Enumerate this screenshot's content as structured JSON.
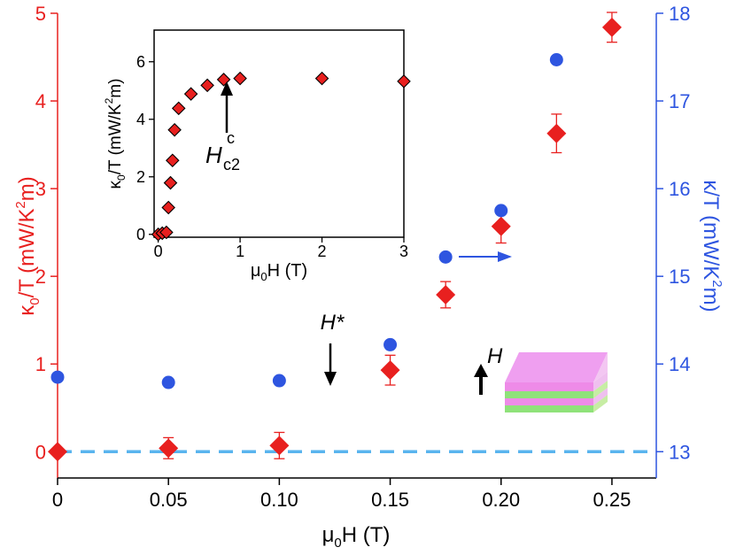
{
  "chart_data": [
    {
      "type": "scatter",
      "xlabel_prefix": "μ",
      "xlabel_sub": "0",
      "xlabel_suffix": "H (T)",
      "xlim": [
        0,
        0.27
      ],
      "x_ticks": [
        "0",
        "0.05",
        "0.10",
        "0.15",
        "0.20",
        "0.25"
      ],
      "x_tick_values": [
        0,
        0.05,
        0.1,
        0.15,
        0.2,
        0.25
      ],
      "left_axis": {
        "label": "κ0/T (mW/K²m)",
        "label_main": "κ",
        "label_sub": "0",
        "label_mid": "/T (mW/K",
        "label_sup": "2",
        "label_end": "m)",
        "color": "#e8201f",
        "ylim": [
          -0.3,
          5
        ],
        "ticks": [
          "0",
          "1",
          "2",
          "3",
          "4",
          "5"
        ],
        "tick_values": [
          0,
          1,
          2,
          3,
          4,
          5
        ]
      },
      "right_axis": {
        "label": "κ/T (mW/K²m)",
        "label_main": "κ/T (mW/K",
        "label_sup": "2",
        "label_end": "m)",
        "color": "#2e55e0",
        "ylim": [
          12.7,
          18
        ],
        "ticks": [
          "13",
          "14",
          "15",
          "16",
          "17",
          "18"
        ],
        "tick_values": [
          13,
          14,
          15,
          16,
          17,
          18
        ]
      },
      "series": [
        {
          "name": "κ0/T",
          "axis": "left",
          "marker": "diamond",
          "color": "#e8201f",
          "x": [
            0,
            0.05,
            0.1,
            0.15,
            0.175,
            0.2,
            0.225,
            0.25
          ],
          "y": [
            0.0,
            0.04,
            0.07,
            0.93,
            1.79,
            2.57,
            3.63,
            4.84
          ],
          "err": [
            0,
            0.12,
            0.15,
            0.17,
            0.15,
            0.19,
            0.22,
            0.17
          ]
        },
        {
          "name": "κ/T",
          "axis": "right",
          "marker": "circle",
          "color": "#2e55e0",
          "x": [
            0,
            0.05,
            0.1,
            0.15,
            0.175,
            0.2,
            0.225
          ],
          "y": [
            13.85,
            13.79,
            13.81,
            14.22,
            15.22,
            15.75,
            17.47
          ]
        }
      ],
      "baseline": {
        "y": 0,
        "color": "#59b4ee",
        "style": "dashed"
      },
      "annotations": {
        "hstar_label": "H*",
        "hstar_x": 0.12,
        "h_field_label": "H",
        "right_arrow_axis": "right"
      }
    },
    {
      "type": "scatter",
      "name": "inset",
      "xlabel_prefix": "μ",
      "xlabel_sub": "0",
      "xlabel_suffix": "H (T)",
      "ylabel_main": "κ",
      "ylabel_sub": "0",
      "ylabel_mid": "/T (mW/K",
      "ylabel_sup": "2",
      "ylabel_end": "m)",
      "xlim": [
        -0.05,
        3
      ],
      "ylim": [
        -0.1,
        7.1
      ],
      "x_ticks": [
        "0",
        "1",
        "2",
        "3"
      ],
      "x_tick_values": [
        0,
        1,
        2,
        3
      ],
      "y_ticks": [
        "0",
        "2",
        "4",
        "6"
      ],
      "y_tick_values": [
        0,
        2,
        4,
        6
      ],
      "series": [
        {
          "name": "κ0/T",
          "marker": "diamond",
          "color": "#e8201f",
          "x": [
            0,
            0.05,
            0.1,
            0.125,
            0.15,
            0.175,
            0.2,
            0.25,
            0.4,
            0.6,
            0.8,
            1.0,
            2.0,
            3.0
          ],
          "y": [
            0.0,
            0.04,
            0.07,
            0.93,
            1.79,
            2.57,
            3.63,
            4.38,
            4.88,
            5.18,
            5.38,
            5.42,
            5.42,
            5.32
          ]
        }
      ],
      "annotations": {
        "hc2_label": "H",
        "hc2_sub": "c2",
        "hc2_sup": "c",
        "hc2_x": 0.88
      }
    }
  ]
}
